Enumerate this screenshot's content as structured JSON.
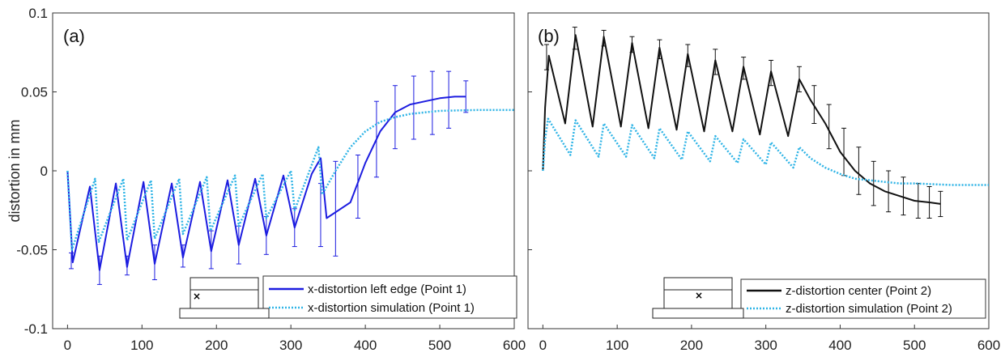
{
  "chart_data": [
    {
      "type": "line",
      "panel_label": "(a)",
      "ylabel": "distortion in mm",
      "xlim": [
        -20,
        600
      ],
      "ylim": [
        -0.1,
        0.1
      ],
      "xticks": [
        "0",
        "100",
        "200",
        "300",
        "400",
        "500",
        "600"
      ],
      "yticks": [
        "0.1",
        "0.05",
        "0",
        "-0.05",
        "-0.1"
      ],
      "legend_position": "bottom-right",
      "colors": {
        "measured": "#1c1ce0",
        "simulation": "#2fb4e6"
      },
      "series": [
        {
          "name": "x-distortion left edge (Point 1)",
          "style": "solid-with-errorbars",
          "x": [
            0,
            7,
            30,
            43,
            65,
            80,
            102,
            117,
            140,
            155,
            178,
            193,
            215,
            230,
            252,
            267,
            290,
            305,
            328,
            340,
            348,
            380,
            400,
            420,
            440,
            460,
            480,
            500,
            520,
            535
          ],
          "y": [
            0.0,
            -0.058,
            -0.01,
            -0.063,
            -0.008,
            -0.061,
            -0.007,
            -0.059,
            -0.008,
            -0.055,
            -0.007,
            -0.051,
            -0.006,
            -0.047,
            -0.005,
            -0.041,
            -0.003,
            -0.036,
            -0.002,
            0.008,
            -0.03,
            -0.02,
            0.005,
            0.025,
            0.037,
            0.042,
            0.044,
            0.046,
            0.047,
            0.047
          ],
          "errorbars": [
            {
              "x": 5,
              "y": -0.057,
              "err": 0.005
            },
            {
              "x": 43,
              "y": -0.063,
              "err": 0.009
            },
            {
              "x": 80,
              "y": -0.06,
              "err": 0.006
            },
            {
              "x": 117,
              "y": -0.058,
              "err": 0.011
            },
            {
              "x": 155,
              "y": -0.054,
              "err": 0.007
            },
            {
              "x": 193,
              "y": -0.05,
              "err": 0.012
            },
            {
              "x": 230,
              "y": -0.047,
              "err": 0.012
            },
            {
              "x": 267,
              "y": -0.041,
              "err": 0.012
            },
            {
              "x": 305,
              "y": -0.036,
              "err": 0.012
            },
            {
              "x": 340,
              "y": -0.028,
              "err": 0.02
            },
            {
              "x": 360,
              "y": -0.024,
              "err": 0.03
            },
            {
              "x": 390,
              "y": -0.01,
              "err": 0.02
            },
            {
              "x": 415,
              "y": 0.02,
              "err": 0.024
            },
            {
              "x": 440,
              "y": 0.034,
              "err": 0.02
            },
            {
              "x": 465,
              "y": 0.04,
              "err": 0.02
            },
            {
              "x": 490,
              "y": 0.043,
              "err": 0.02
            },
            {
              "x": 512,
              "y": 0.045,
              "err": 0.018
            },
            {
              "x": 535,
              "y": 0.047,
              "err": 0.01
            }
          ]
        },
        {
          "name": "x-distortion simulation (Point  1)",
          "style": "dotted",
          "x": [
            0,
            6,
            37,
            42,
            75,
            80,
            112,
            117,
            150,
            155,
            187,
            192,
            225,
            230,
            262,
            267,
            300,
            305,
            337,
            342,
            360,
            380,
            400,
            420,
            440,
            460,
            480,
            500,
            550,
            600
          ],
          "y": [
            0.0,
            -0.05,
            -0.005,
            -0.045,
            -0.005,
            -0.044,
            -0.006,
            -0.043,
            -0.005,
            -0.04,
            -0.004,
            -0.038,
            -0.003,
            -0.035,
            -0.002,
            -0.03,
            0.0,
            -0.025,
            0.015,
            -0.015,
            0.0,
            0.015,
            0.025,
            0.031,
            0.034,
            0.036,
            0.037,
            0.038,
            0.0385,
            0.0385
          ]
        }
      ]
    },
    {
      "type": "line",
      "panel_label": "(b)",
      "xlim": [
        -20,
        600
      ],
      "ylim": [
        -0.1,
        0.1
      ],
      "xticks": [
        "0",
        "100",
        "200",
        "300",
        "400",
        "500",
        "600"
      ],
      "legend_position": "bottom-right",
      "colors": {
        "measured": "#111111",
        "simulation": "#2fb4e6"
      },
      "series": [
        {
          "name": "z-distortion center (Point 2)",
          "style": "solid-with-errorbars",
          "x": [
            0,
            3,
            8,
            30,
            44,
            67,
            82,
            105,
            120,
            142,
            157,
            180,
            195,
            217,
            232,
            255,
            270,
            292,
            307,
            330,
            345,
            360,
            380,
            400,
            420,
            440,
            460,
            480,
            500,
            520,
            535
          ],
          "y": [
            0.0,
            0.04,
            0.073,
            0.03,
            0.086,
            0.028,
            0.085,
            0.028,
            0.081,
            0.027,
            0.078,
            0.026,
            0.074,
            0.025,
            0.07,
            0.025,
            0.066,
            0.023,
            0.063,
            0.022,
            0.058,
            0.045,
            0.03,
            0.012,
            0.0,
            -0.008,
            -0.013,
            -0.016,
            -0.019,
            -0.02,
            -0.021
          ],
          "errorbars": [
            {
              "x": 5,
              "y": 0.072,
              "err": 0.008
            },
            {
              "x": 43,
              "y": 0.084,
              "err": 0.007
            },
            {
              "x": 82,
              "y": 0.084,
              "err": 0.005
            },
            {
              "x": 120,
              "y": 0.08,
              "err": 0.005
            },
            {
              "x": 157,
              "y": 0.077,
              "err": 0.006
            },
            {
              "x": 195,
              "y": 0.073,
              "err": 0.007
            },
            {
              "x": 232,
              "y": 0.069,
              "err": 0.008
            },
            {
              "x": 270,
              "y": 0.065,
              "err": 0.007
            },
            {
              "x": 307,
              "y": 0.062,
              "err": 0.008
            },
            {
              "x": 345,
              "y": 0.058,
              "err": 0.008
            },
            {
              "x": 365,
              "y": 0.042,
              "err": 0.012
            },
            {
              "x": 385,
              "y": 0.028,
              "err": 0.014
            },
            {
              "x": 405,
              "y": 0.012,
              "err": 0.015
            },
            {
              "x": 425,
              "y": 0.0,
              "err": 0.015
            },
            {
              "x": 445,
              "y": -0.008,
              "err": 0.014
            },
            {
              "x": 465,
              "y": -0.013,
              "err": 0.013
            },
            {
              "x": 485,
              "y": -0.016,
              "err": 0.012
            },
            {
              "x": 505,
              "y": -0.019,
              "err": 0.011
            },
            {
              "x": 520,
              "y": -0.02,
              "err": 0.01
            },
            {
              "x": 535,
              "y": -0.021,
              "err": 0.008
            }
          ]
        },
        {
          "name": "z-distortion simulation (Point 2)",
          "style": "dotted",
          "x": [
            0,
            3,
            7,
            37,
            44,
            75,
            82,
            112,
            120,
            150,
            157,
            187,
            195,
            225,
            232,
            262,
            270,
            300,
            307,
            337,
            345,
            360,
            380,
            400,
            420,
            440,
            460,
            480,
            500,
            550,
            600
          ],
          "y": [
            0.0,
            0.02,
            0.033,
            0.01,
            0.032,
            0.009,
            0.03,
            0.009,
            0.029,
            0.008,
            0.027,
            0.007,
            0.025,
            0.006,
            0.022,
            0.005,
            0.02,
            0.004,
            0.018,
            0.002,
            0.015,
            0.008,
            0.002,
            -0.002,
            -0.005,
            -0.006,
            -0.007,
            -0.008,
            -0.008,
            -0.009,
            -0.009
          ]
        }
      ]
    }
  ]
}
